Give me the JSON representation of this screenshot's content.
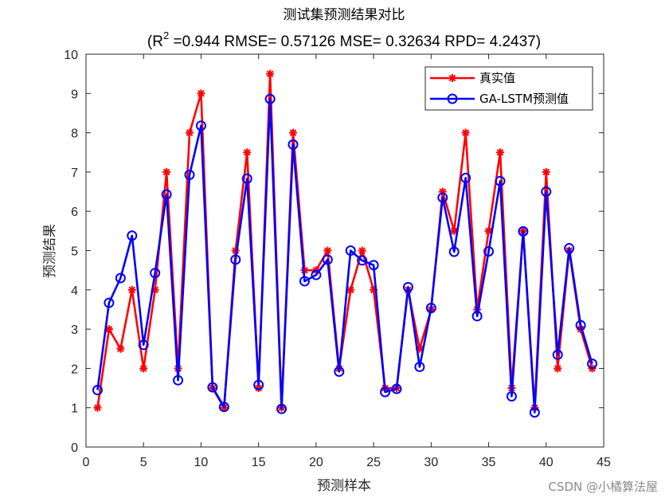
{
  "chart_data": {
    "type": "line",
    "title": "测试集预测结果对比",
    "subtitle": {
      "prefix": "(R",
      "sup": "2",
      "rest": " =0.944 RMSE= 0.57126 MSE= 0.32634 RPD= 4.2437)"
    },
    "xlabel": "预测样本",
    "ylabel": "预测结果",
    "xlim": [
      0,
      45
    ],
    "ylim": [
      0,
      10
    ],
    "xticks": [
      "0",
      "5",
      "10",
      "15",
      "20",
      "25",
      "30",
      "35",
      "40",
      "45"
    ],
    "yticks": [
      "0",
      "1",
      "2",
      "3",
      "4",
      "5",
      "6",
      "7",
      "8",
      "9",
      "10"
    ],
    "legend_position": "top-right",
    "x": [
      1,
      2,
      3,
      4,
      5,
      6,
      7,
      8,
      9,
      10,
      11,
      12,
      13,
      14,
      15,
      16,
      17,
      18,
      19,
      20,
      21,
      22,
      23,
      24,
      25,
      26,
      27,
      28,
      29,
      30,
      31,
      32,
      33,
      34,
      35,
      36,
      37,
      38,
      39,
      40,
      41,
      42,
      43,
      44
    ],
    "series": [
      {
        "name": "真实值",
        "color": "#ff0000",
        "marker": "asterisk",
        "values": [
          1,
          3,
          2.5,
          4,
          2,
          4,
          7,
          2,
          8,
          9,
          1.5,
          1,
          5,
          7.5,
          1.5,
          9.5,
          1,
          8,
          4.5,
          4.5,
          5,
          2,
          4,
          5,
          4,
          1.5,
          1.5,
          4,
          2.5,
          3.5,
          6.5,
          5.5,
          8,
          3.5,
          5.5,
          7.5,
          1.5,
          5.5,
          1,
          7,
          2,
          5,
          3,
          2
        ]
      },
      {
        "name": "GA-LSTM预测值",
        "color": "#0000ff",
        "marker": "circle",
        "values": [
          1.45,
          3.67,
          4.3,
          5.38,
          2.6,
          4.43,
          6.43,
          1.7,
          6.93,
          8.18,
          1.52,
          1.02,
          4.77,
          6.83,
          1.58,
          8.86,
          0.97,
          7.7,
          4.22,
          4.38,
          4.77,
          1.92,
          5.0,
          4.75,
          4.63,
          1.4,
          1.48,
          4.07,
          2.04,
          3.54,
          6.35,
          4.97,
          6.85,
          3.33,
          4.98,
          6.77,
          1.29,
          5.49,
          0.88,
          6.5,
          2.35,
          5.06,
          3.1,
          2.12
        ]
      }
    ]
  },
  "watermark": "CSDN @小橘算法屋"
}
